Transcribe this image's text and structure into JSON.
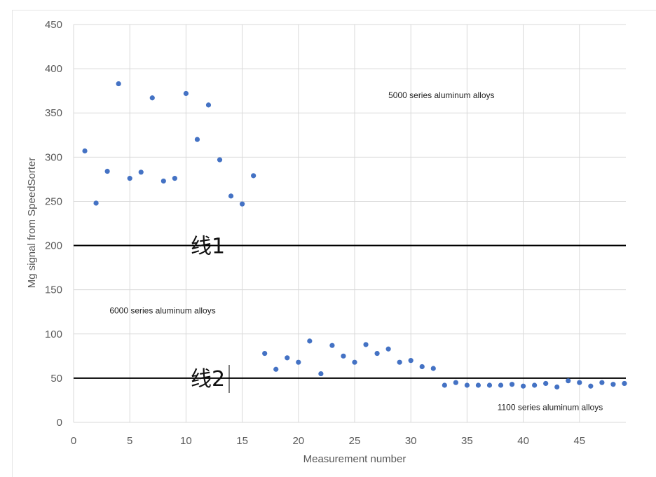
{
  "chart_data": {
    "type": "scatter",
    "xlabel": "Measurement number",
    "ylabel": "Mg signal from SpeedSorter",
    "xlim": [
      0,
      49
    ],
    "ylim": [
      0,
      450
    ],
    "x_ticks": [
      0,
      5,
      10,
      15,
      20,
      25,
      30,
      35,
      40,
      45
    ],
    "y_ticks": [
      0,
      50,
      100,
      150,
      200,
      250,
      300,
      350,
      400,
      450
    ],
    "grid": "vertical and horizontal",
    "marker_color": "#4472c4",
    "series": [
      {
        "x": [
          1,
          2,
          3,
          4,
          5,
          6,
          7,
          8,
          9,
          10,
          11,
          12,
          13,
          14,
          15,
          16,
          17,
          18,
          19,
          20,
          21,
          22,
          23,
          24,
          25,
          26,
          27,
          28,
          29,
          30,
          31,
          32,
          33,
          34,
          35,
          36,
          37,
          38,
          39,
          40,
          41,
          42,
          43,
          44,
          45,
          46,
          47,
          48,
          49
        ],
        "y": [
          307,
          248,
          284,
          383,
          276,
          283,
          367,
          273,
          276,
          372,
          320,
          359,
          297,
          256,
          247,
          279,
          78,
          60,
          73,
          68,
          92,
          55,
          87,
          75,
          68,
          88,
          78,
          83,
          68,
          70,
          63,
          61,
          42,
          45,
          42,
          42,
          42,
          42,
          43,
          41,
          42,
          44,
          40,
          47,
          45,
          41,
          45,
          43,
          44
        ]
      }
    ],
    "reference_lines": [
      {
        "y": 200,
        "label": "线1",
        "color": "#000000"
      },
      {
        "y": 50,
        "label": "线2",
        "color": "#000000"
      }
    ],
    "annotations": [
      {
        "text": "5000 series aluminum alloys",
        "x": 28,
        "y": 367
      },
      {
        "text": "6000 series aluminum alloys",
        "x": 3.2,
        "y": 123
      },
      {
        "text": "1100 series aluminum alloys",
        "x": 37.7,
        "y": 14
      }
    ]
  }
}
